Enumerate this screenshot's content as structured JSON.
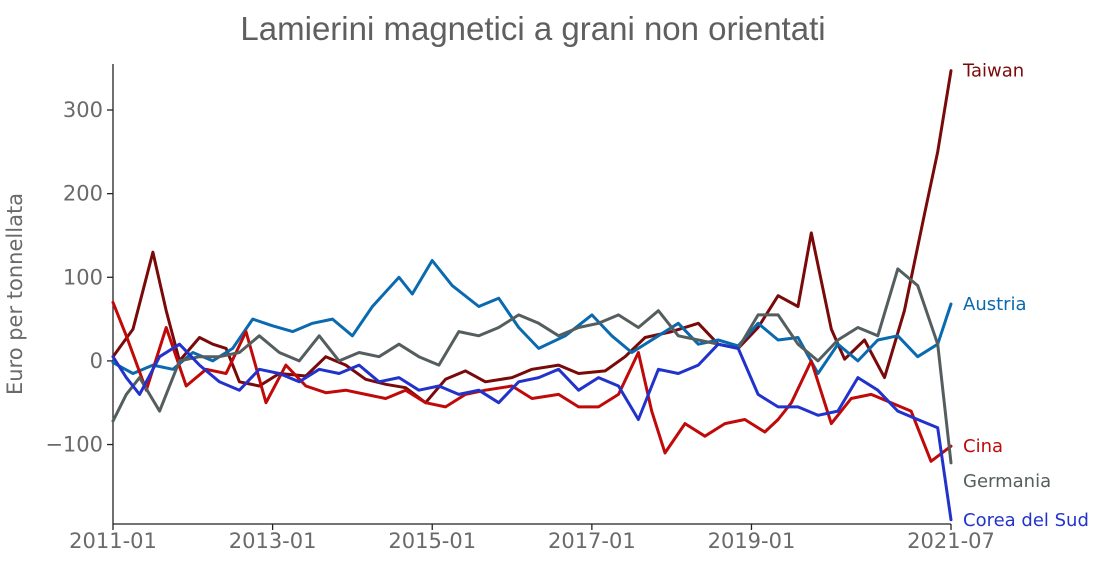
{
  "chart_data": {
    "type": "line",
    "title": "Lamierini magnetici a grani non orientati",
    "xlabel": "",
    "ylabel": "Euro per tonnellata",
    "xlim": [
      "2011-01",
      "2021-07"
    ],
    "ylim": [
      -195,
      355
    ],
    "x_ticks": [
      "2011-01",
      "2013-01",
      "2015-01",
      "2017-01",
      "2019-01",
      "2021-07"
    ],
    "y_ticks": [
      -100,
      0,
      100,
      200,
      300
    ],
    "y_tick_labels": [
      "−100",
      "0",
      "100",
      "200",
      "300"
    ],
    "grid": false,
    "legend": "labels at line ends (right)",
    "series": [
      {
        "name": "Taiwan",
        "color": "#7a0a0a",
        "points": [
          [
            "2011-01",
            5
          ],
          [
            "2011-04",
            38
          ],
          [
            "2011-07",
            130
          ],
          [
            "2011-09",
            60
          ],
          [
            "2011-11",
            0
          ],
          [
            "2012-02",
            28
          ],
          [
            "2012-04",
            20
          ],
          [
            "2012-06",
            15
          ],
          [
            "2012-08",
            -25
          ],
          [
            "2012-11",
            -30
          ],
          [
            "2013-02",
            -15
          ],
          [
            "2013-06",
            -18
          ],
          [
            "2013-09",
            5
          ],
          [
            "2013-12",
            -5
          ],
          [
            "2014-03",
            -22
          ],
          [
            "2014-06",
            -28
          ],
          [
            "2014-09",
            -32
          ],
          [
            "2014-12",
            -50
          ],
          [
            "2015-03",
            -22
          ],
          [
            "2015-06",
            -12
          ],
          [
            "2015-09",
            -25
          ],
          [
            "2016-01",
            -20
          ],
          [
            "2016-04",
            -10
          ],
          [
            "2016-08",
            -5
          ],
          [
            "2016-11",
            -15
          ],
          [
            "2017-03",
            -12
          ],
          [
            "2017-06",
            5
          ],
          [
            "2017-09",
            28
          ],
          [
            "2018-01",
            35
          ],
          [
            "2018-05",
            45
          ],
          [
            "2018-08",
            20
          ],
          [
            "2018-11",
            15
          ],
          [
            "2019-02",
            40
          ],
          [
            "2019-05",
            78
          ],
          [
            "2019-08",
            65
          ],
          [
            "2019-10",
            153
          ],
          [
            "2020-01",
            38
          ],
          [
            "2020-03",
            2
          ],
          [
            "2020-06",
            25
          ],
          [
            "2020-09",
            -20
          ],
          [
            "2020-12",
            60
          ],
          [
            "2021-03",
            175
          ],
          [
            "2021-05",
            250
          ],
          [
            "2021-07",
            347
          ]
        ]
      },
      {
        "name": "Austria",
        "color": "#0a6ab0",
        "points": [
          [
            "2011-01",
            -2
          ],
          [
            "2011-04",
            -15
          ],
          [
            "2011-07",
            -5
          ],
          [
            "2011-10",
            -10
          ],
          [
            "2012-01",
            10
          ],
          [
            "2012-04",
            0
          ],
          [
            "2012-07",
            15
          ],
          [
            "2012-10",
            50
          ],
          [
            "2013-01",
            42
          ],
          [
            "2013-04",
            35
          ],
          [
            "2013-07",
            45
          ],
          [
            "2013-10",
            50
          ],
          [
            "2014-01",
            30
          ],
          [
            "2014-04",
            65
          ],
          [
            "2014-08",
            100
          ],
          [
            "2014-10",
            80
          ],
          [
            "2015-01",
            120
          ],
          [
            "2015-04",
            90
          ],
          [
            "2015-08",
            65
          ],
          [
            "2015-11",
            75
          ],
          [
            "2016-02",
            40
          ],
          [
            "2016-05",
            15
          ],
          [
            "2016-09",
            30
          ],
          [
            "2017-01",
            55
          ],
          [
            "2017-04",
            30
          ],
          [
            "2017-07",
            10
          ],
          [
            "2017-11",
            30
          ],
          [
            "2018-02",
            45
          ],
          [
            "2018-05",
            20
          ],
          [
            "2018-08",
            25
          ],
          [
            "2018-11",
            18
          ],
          [
            "2019-02",
            45
          ],
          [
            "2019-05",
            25
          ],
          [
            "2019-08",
            28
          ],
          [
            "2019-11",
            -15
          ],
          [
            "2020-02",
            20
          ],
          [
            "2020-05",
            0
          ],
          [
            "2020-08",
            25
          ],
          [
            "2020-11",
            30
          ],
          [
            "2021-02",
            5
          ],
          [
            "2021-05",
            20
          ],
          [
            "2021-07",
            68
          ]
        ]
      },
      {
        "name": "Cina",
        "color": "#c00a0a",
        "points": [
          [
            "2011-01",
            70
          ],
          [
            "2011-03",
            30
          ],
          [
            "2011-06",
            -35
          ],
          [
            "2011-09",
            40
          ],
          [
            "2011-12",
            -30
          ],
          [
            "2012-03",
            -10
          ],
          [
            "2012-06",
            -15
          ],
          [
            "2012-09",
            35
          ],
          [
            "2012-12",
            -50
          ],
          [
            "2013-03",
            -5
          ],
          [
            "2013-06",
            -30
          ],
          [
            "2013-09",
            -38
          ],
          [
            "2013-12",
            -35
          ],
          [
            "2014-03",
            -40
          ],
          [
            "2014-06",
            -45
          ],
          [
            "2014-09",
            -35
          ],
          [
            "2014-12",
            -50
          ],
          [
            "2015-03",
            -55
          ],
          [
            "2015-06",
            -40
          ],
          [
            "2015-09",
            -35
          ],
          [
            "2016-01",
            -30
          ],
          [
            "2016-04",
            -45
          ],
          [
            "2016-08",
            -40
          ],
          [
            "2016-11",
            -55
          ],
          [
            "2017-02",
            -55
          ],
          [
            "2017-05",
            -40
          ],
          [
            "2017-08",
            10
          ],
          [
            "2017-10",
            -60
          ],
          [
            "2017-12",
            -110
          ],
          [
            "2018-03",
            -75
          ],
          [
            "2018-06",
            -90
          ],
          [
            "2018-09",
            -75
          ],
          [
            "2018-12",
            -70
          ],
          [
            "2019-03",
            -85
          ],
          [
            "2019-05",
            -70
          ],
          [
            "2019-07",
            -50
          ],
          [
            "2019-10",
            0
          ],
          [
            "2020-01",
            -75
          ],
          [
            "2020-04",
            -45
          ],
          [
            "2020-07",
            -40
          ],
          [
            "2020-10",
            -50
          ],
          [
            "2021-01",
            -60
          ],
          [
            "2021-04",
            -120
          ],
          [
            "2021-07",
            -102
          ]
        ]
      },
      {
        "name": "Germania",
        "color": "#555e5e",
        "points": [
          [
            "2011-01",
            -72
          ],
          [
            "2011-03",
            -40
          ],
          [
            "2011-05",
            -20
          ],
          [
            "2011-08",
            -60
          ],
          [
            "2011-11",
            0
          ],
          [
            "2012-02",
            5
          ],
          [
            "2012-05",
            5
          ],
          [
            "2012-08",
            10
          ],
          [
            "2012-11",
            30
          ],
          [
            "2013-02",
            10
          ],
          [
            "2013-05",
            0
          ],
          [
            "2013-08",
            30
          ],
          [
            "2013-11",
            0
          ],
          [
            "2014-02",
            10
          ],
          [
            "2014-05",
            5
          ],
          [
            "2014-08",
            20
          ],
          [
            "2014-11",
            5
          ],
          [
            "2015-02",
            -5
          ],
          [
            "2015-05",
            35
          ],
          [
            "2015-08",
            30
          ],
          [
            "2015-11",
            40
          ],
          [
            "2016-02",
            55
          ],
          [
            "2016-05",
            45
          ],
          [
            "2016-08",
            30
          ],
          [
            "2016-11",
            40
          ],
          [
            "2017-02",
            45
          ],
          [
            "2017-05",
            55
          ],
          [
            "2017-08",
            40
          ],
          [
            "2017-11",
            60
          ],
          [
            "2018-02",
            30
          ],
          [
            "2018-05",
            25
          ],
          [
            "2018-08",
            20
          ],
          [
            "2018-11",
            15
          ],
          [
            "2019-02",
            55
          ],
          [
            "2019-05",
            55
          ],
          [
            "2019-08",
            20
          ],
          [
            "2019-11",
            0
          ],
          [
            "2020-02",
            25
          ],
          [
            "2020-05",
            40
          ],
          [
            "2020-08",
            30
          ],
          [
            "2020-11",
            110
          ],
          [
            "2021-02",
            90
          ],
          [
            "2021-05",
            20
          ],
          [
            "2021-07",
            -122
          ]
        ]
      },
      {
        "name": "Corea del Sud",
        "color": "#2233cc",
        "points": [
          [
            "2011-01",
            5
          ],
          [
            "2011-03",
            -20
          ],
          [
            "2011-05",
            -40
          ],
          [
            "2011-08",
            5
          ],
          [
            "2011-11",
            20
          ],
          [
            "2012-02",
            -5
          ],
          [
            "2012-05",
            -25
          ],
          [
            "2012-08",
            -35
          ],
          [
            "2012-11",
            -10
          ],
          [
            "2013-02",
            -15
          ],
          [
            "2013-05",
            -25
          ],
          [
            "2013-08",
            -10
          ],
          [
            "2013-11",
            -15
          ],
          [
            "2014-02",
            -5
          ],
          [
            "2014-05",
            -25
          ],
          [
            "2014-08",
            -20
          ],
          [
            "2014-11",
            -35
          ],
          [
            "2015-02",
            -30
          ],
          [
            "2015-05",
            -40
          ],
          [
            "2015-08",
            -35
          ],
          [
            "2015-11",
            -50
          ],
          [
            "2016-02",
            -25
          ],
          [
            "2016-05",
            -20
          ],
          [
            "2016-08",
            -10
          ],
          [
            "2016-11",
            -35
          ],
          [
            "2017-02",
            -20
          ],
          [
            "2017-05",
            -30
          ],
          [
            "2017-08",
            -70
          ],
          [
            "2017-11",
            -10
          ],
          [
            "2018-02",
            -15
          ],
          [
            "2018-05",
            -5
          ],
          [
            "2018-08",
            20
          ],
          [
            "2018-11",
            15
          ],
          [
            "2019-02",
            -40
          ],
          [
            "2019-05",
            -55
          ],
          [
            "2019-08",
            -55
          ],
          [
            "2019-11",
            -65
          ],
          [
            "2020-02",
            -60
          ],
          [
            "2020-05",
            -20
          ],
          [
            "2020-08",
            -35
          ],
          [
            "2020-11",
            -60
          ],
          [
            "2021-02",
            -70
          ],
          [
            "2021-05",
            -80
          ],
          [
            "2021-07",
            -190
          ]
        ]
      }
    ]
  }
}
